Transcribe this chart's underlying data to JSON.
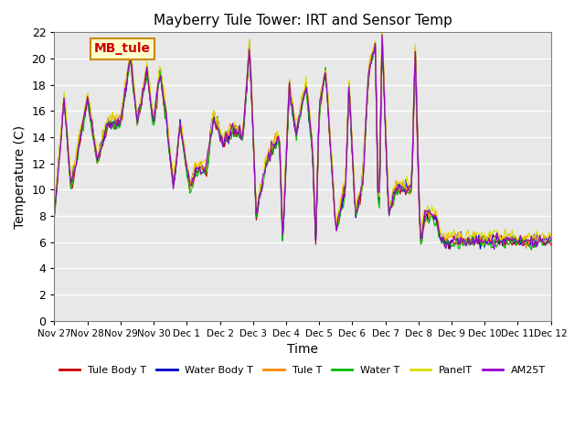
{
  "title": "Mayberry Tule Tower: IRT and Sensor Temp",
  "xlabel": "Time",
  "ylabel": "Temperature (C)",
  "ylim": [
    0,
    22
  ],
  "yticks": [
    0,
    2,
    4,
    6,
    8,
    10,
    12,
    14,
    16,
    18,
    20,
    22
  ],
  "plot_bg_color": "#e8e8e8",
  "grid_color": "white",
  "series": [
    {
      "label": "Tule Body T",
      "color": "#cc0000"
    },
    {
      "label": "Water Body T",
      "color": "#0000cc"
    },
    {
      "label": "Tule T",
      "color": "#ff8800"
    },
    {
      "label": "Water T",
      "color": "#00bb00"
    },
    {
      "label": "PanelT",
      "color": "#dddd00"
    },
    {
      "label": "AM25T",
      "color": "#9900cc"
    }
  ],
  "watermark_text": "MB_tule",
  "watermark_bg": "#ffffcc",
  "watermark_border": "#cc8800",
  "x_tick_labels": [
    "Nov 27",
    "Nov 28",
    "Nov 29",
    "Nov 30",
    "Dec 1",
    "Dec 2",
    "Dec 3",
    "Dec 4",
    "Dec 5",
    "Dec 6",
    "Dec 7",
    "Dec 8",
    "Dec 9",
    "Dec 10",
    "Dec 11",
    "Dec 12"
  ],
  "n_days": 15,
  "pts_per_day": 24
}
